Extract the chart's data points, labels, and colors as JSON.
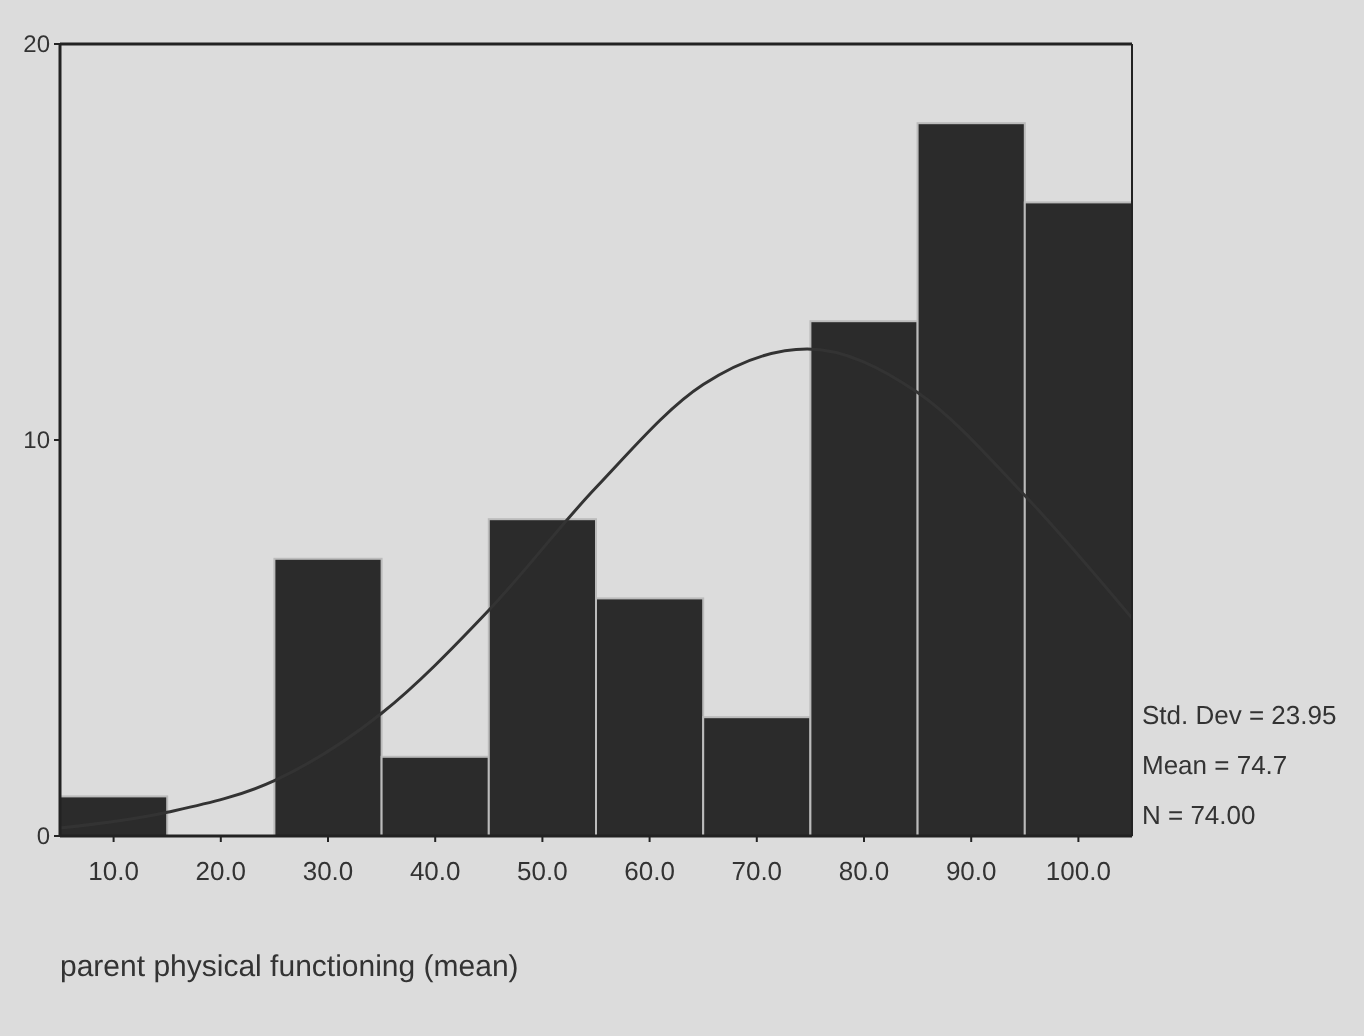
{
  "chart_data": {
    "type": "histogram",
    "xlabel": "parent physical functioning (mean)",
    "bins": [
      5,
      15,
      25,
      35,
      45,
      55,
      65,
      75,
      85,
      95,
      105
    ],
    "values": [
      1,
      0,
      7,
      2,
      8,
      6,
      3,
      13,
      18,
      16
    ],
    "color": "#2b2b2b",
    "series": [
      {
        "type": "line",
        "color": "#333333",
        "x": [
          5,
          15,
          25,
          35,
          45,
          55,
          65,
          74.7,
          85,
          95,
          105
        ],
        "values": [
          0.2,
          0.6,
          1.4,
          3.1,
          5.7,
          8.8,
          11.4,
          12.3,
          11.2,
          8.6,
          5.5
        ]
      }
    ],
    "xlim": [
      5,
      105
    ],
    "ylim": [
      0,
      20
    ],
    "xticks": [
      {
        "value": 10,
        "label": "10.0"
      },
      {
        "value": 20,
        "label": "20.0"
      },
      {
        "value": 30,
        "label": "30.0"
      },
      {
        "value": 40,
        "label": "40.0"
      },
      {
        "value": 50,
        "label": "50.0"
      },
      {
        "value": 60,
        "label": "60.0"
      },
      {
        "value": 70,
        "label": "70.0"
      },
      {
        "value": 80,
        "label": "80.0"
      },
      {
        "value": 90,
        "label": "90.0"
      },
      {
        "value": 100,
        "label": "100.0"
      }
    ],
    "yticks": [
      0,
      10,
      20
    ],
    "annotations": [
      "Std. Dev = 23.95",
      "Mean = 74.7",
      "N = 74.00"
    ]
  }
}
